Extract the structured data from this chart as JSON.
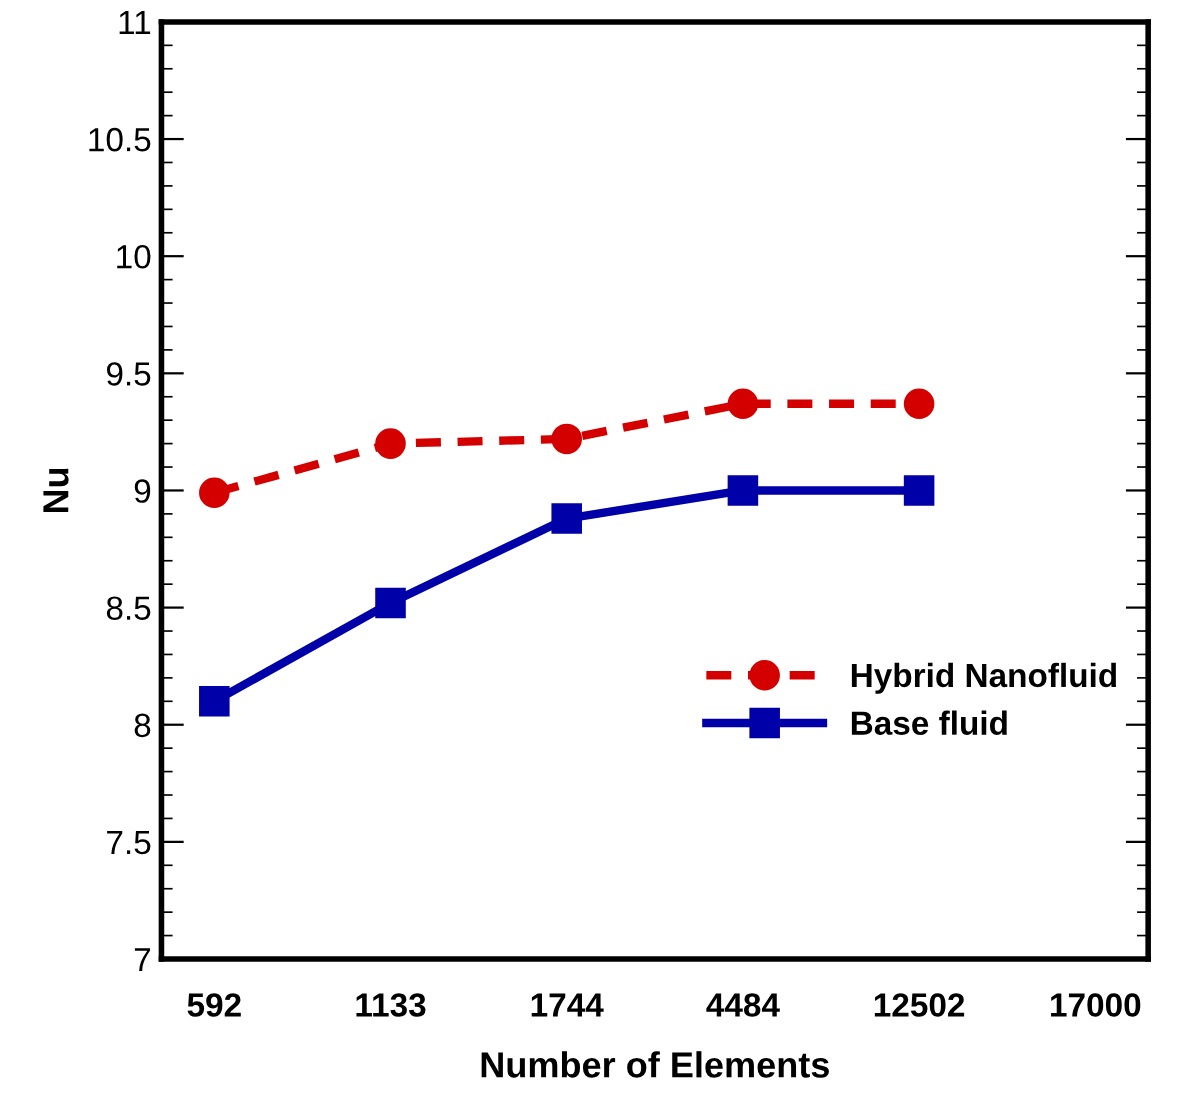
{
  "chart_data": {
    "type": "line",
    "xlabel": "Number of Elements",
    "ylabel": "Nu",
    "categories": [
      "592",
      "1133",
      "1744",
      "4484",
      "12502",
      "17000"
    ],
    "series": [
      {
        "name": "Hybrid Nanofluid",
        "color": "#d40000",
        "values": [
          8.99,
          9.2,
          9.22,
          9.37,
          9.37,
          null
        ],
        "marker": "circle",
        "line_style": "dashed"
      },
      {
        "name": "Base fluid",
        "color": "#0000a8",
        "values": [
          8.1,
          8.52,
          8.88,
          9.0,
          9.0,
          null
        ],
        "marker": "square",
        "line_style": "solid"
      }
    ],
    "ylim": [
      7,
      11
    ],
    "yticks": [
      7,
      7.5,
      8,
      8.5,
      9,
      9.5,
      10,
      10.5,
      11
    ],
    "grid": false,
    "legend": "lower right"
  }
}
